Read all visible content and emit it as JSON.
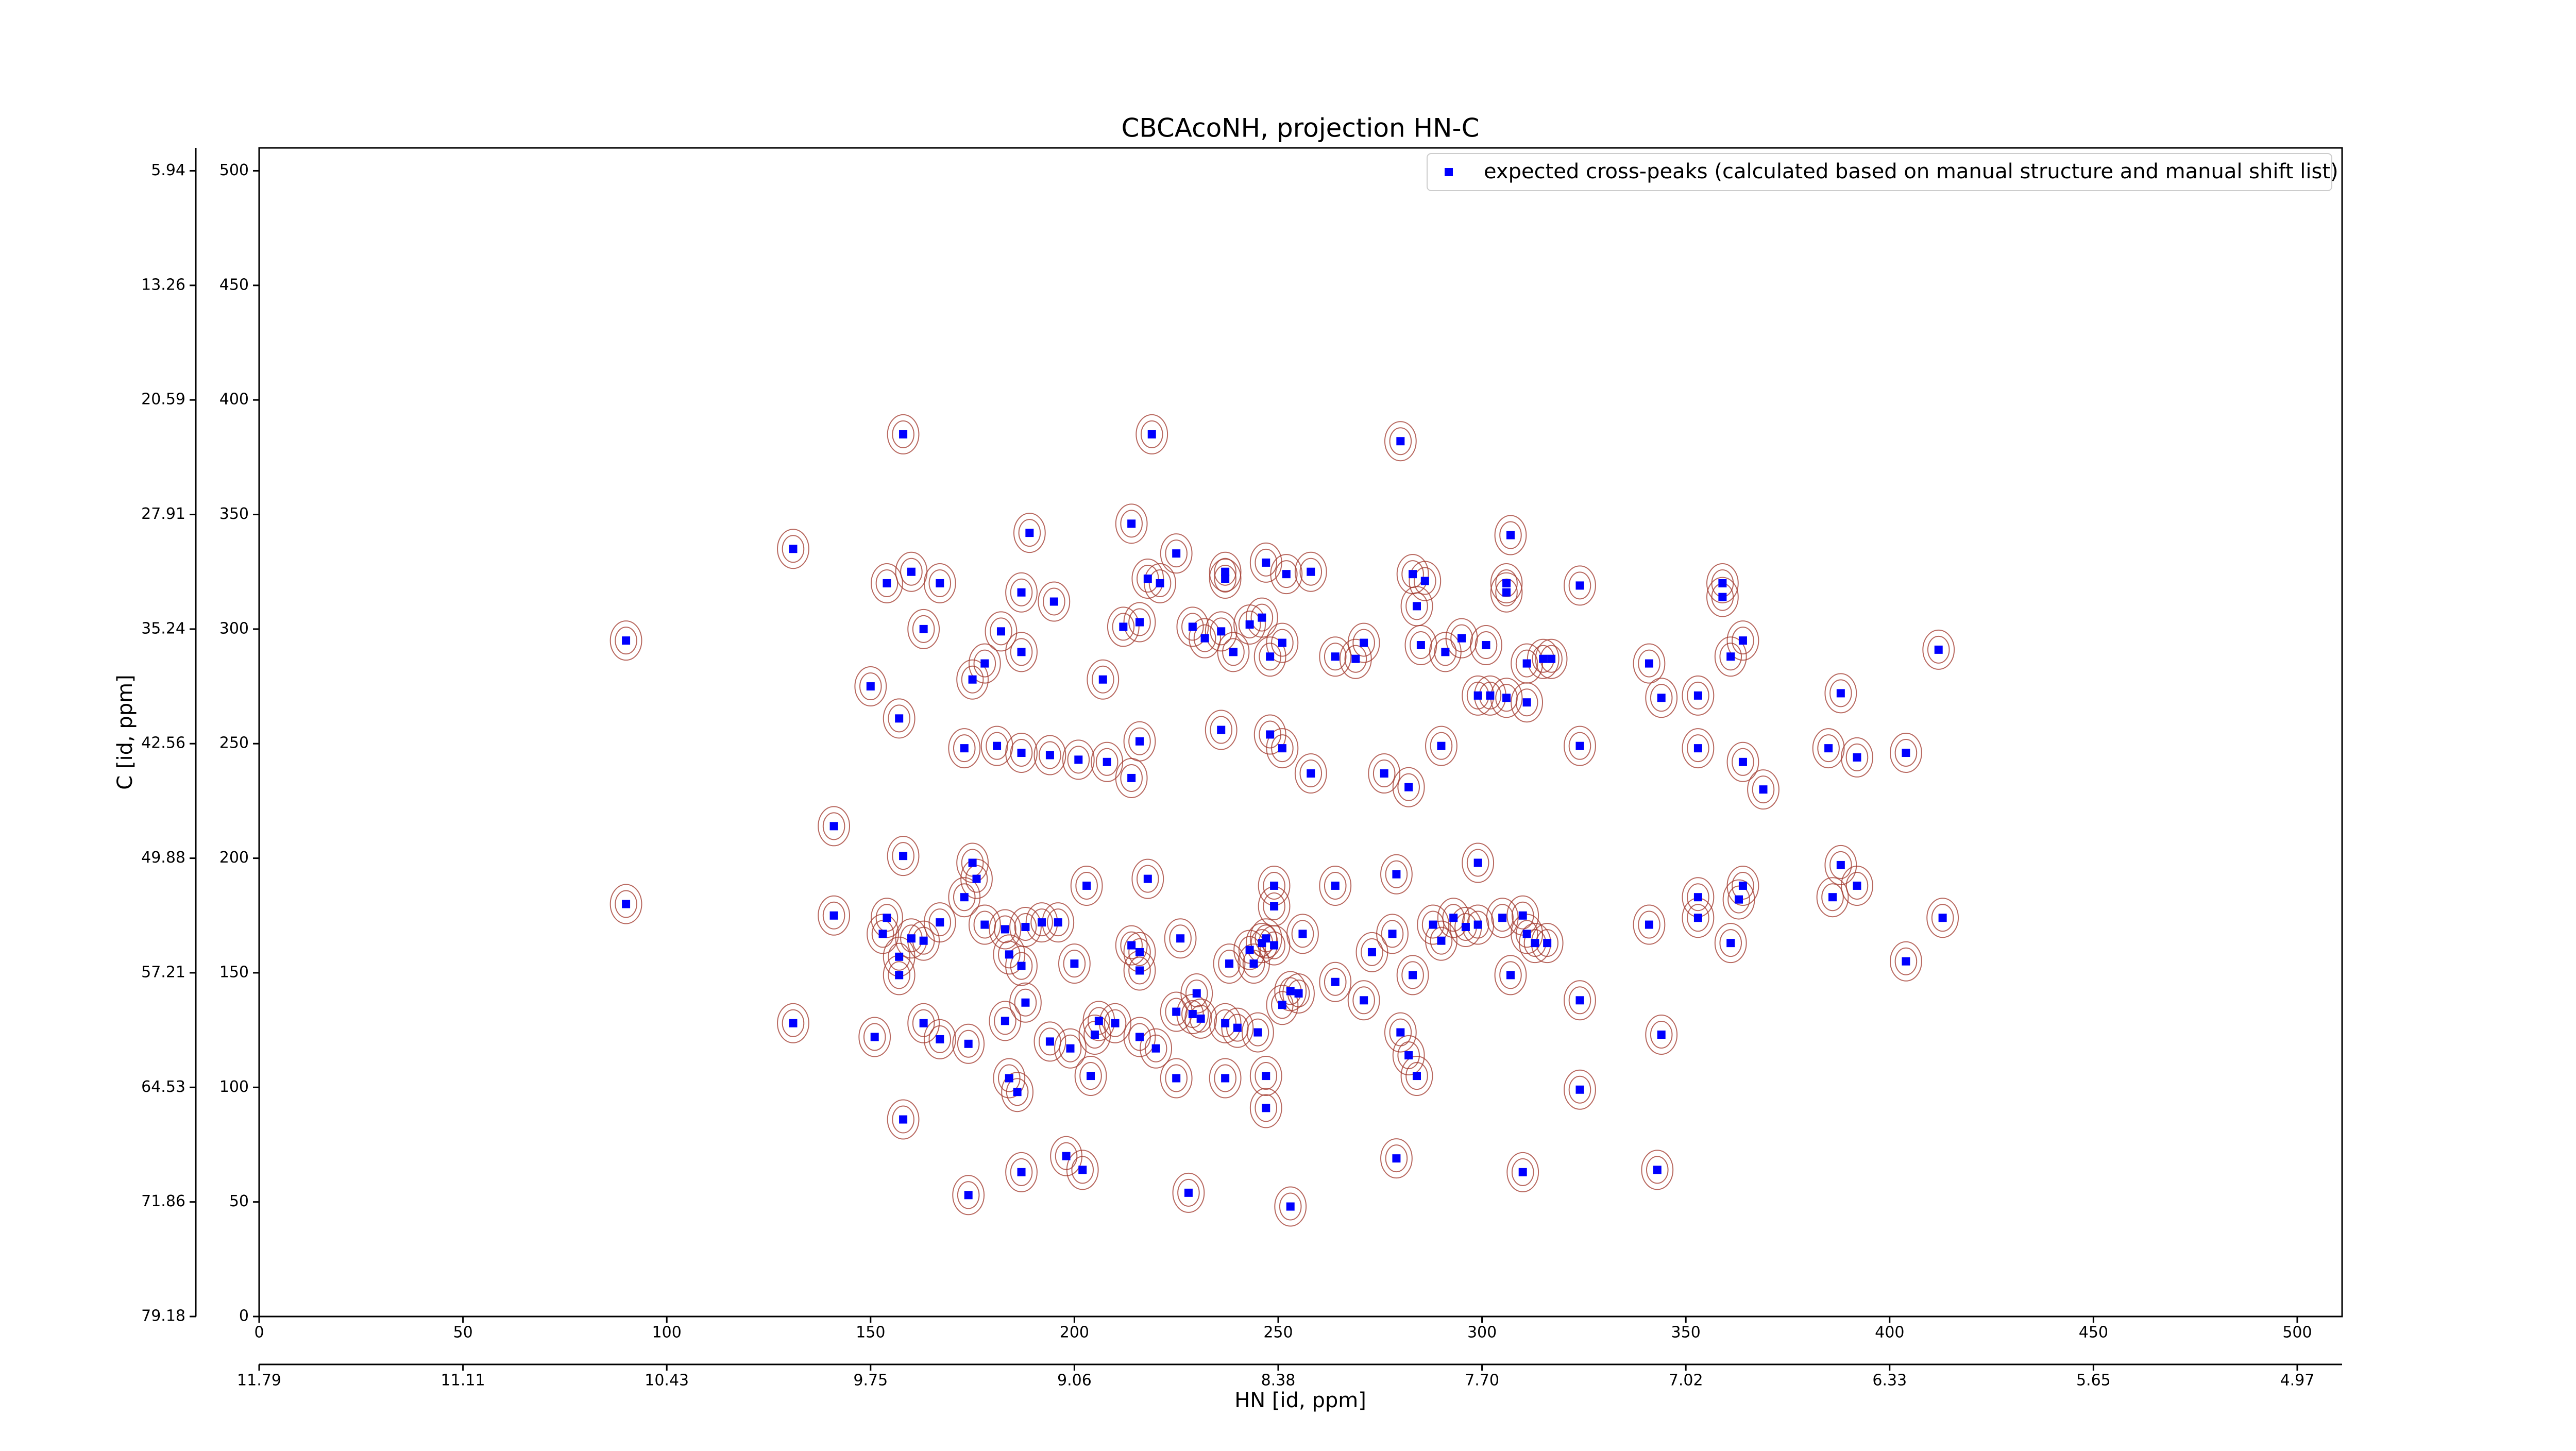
{
  "chart_data": {
    "type": "scatter",
    "title": "CBCAcoNH, projection HN-C",
    "xlabel": "HN [id, ppm]",
    "ylabel": "C [id, ppm]",
    "xlim": [
      0,
      511
    ],
    "ylim": [
      0,
      510
    ],
    "xticks": [
      0,
      50,
      100,
      150,
      200,
      250,
      300,
      350,
      400,
      450,
      500
    ],
    "yticks": [
      0,
      50,
      100,
      150,
      200,
      250,
      300,
      350,
      400,
      450,
      500
    ],
    "x2ticks": [
      {
        "value": 0,
        "label": "11.79"
      },
      {
        "value": 50,
        "label": "11.11"
      },
      {
        "value": 100,
        "label": "10.43"
      },
      {
        "value": 150,
        "label": "9.75"
      },
      {
        "value": 200,
        "label": "9.06"
      },
      {
        "value": 250,
        "label": "8.38"
      },
      {
        "value": 300,
        "label": "7.70"
      },
      {
        "value": 350,
        "label": "7.02"
      },
      {
        "value": 400,
        "label": "6.33"
      },
      {
        "value": 450,
        "label": "5.65"
      },
      {
        "value": 500,
        "label": "4.97"
      }
    ],
    "y2ticks": [
      {
        "value": 0,
        "label": "79.18"
      },
      {
        "value": 50,
        "label": "71.86"
      },
      {
        "value": 100,
        "label": "64.53"
      },
      {
        "value": 150,
        "label": "57.21"
      },
      {
        "value": 200,
        "label": "49.88"
      },
      {
        "value": 250,
        "label": "42.56"
      },
      {
        "value": 300,
        "label": "35.24"
      },
      {
        "value": 350,
        "label": "27.91"
      },
      {
        "value": 400,
        "label": "20.59"
      },
      {
        "value": 450,
        "label": "13.26"
      },
      {
        "value": 500,
        "label": "5.94"
      }
    ],
    "legend": "upper right",
    "series": [
      {
        "name": "expected cross-peaks (calculated based on manual structure and manual shift list)",
        "color": "#0000ff",
        "x": [
          158,
          219,
          280,
          131,
          189,
          214,
          225,
          307,
          154,
          160,
          167,
          187,
          195,
          218,
          221,
          237,
          237,
          247,
          252,
          258,
          283,
          286,
          284,
          306,
          306,
          324,
          359,
          359,
          90,
          163,
          182,
          187,
          212,
          216,
          229,
          236,
          243,
          246,
          251,
          248,
          239,
          232,
          271,
          264,
          269,
          285,
          291,
          295,
          301,
          311,
          315,
          317,
          364,
          361,
          341,
          412,
          150,
          175,
          178,
          207,
          299,
          302,
          306,
          311,
          344,
          353,
          388,
          157,
          173,
          181,
          187,
          194,
          201,
          208,
          214,
          216,
          236,
          248,
          251,
          258,
          276,
          282,
          290,
          324,
          353,
          364,
          369,
          385,
          392,
          404,
          141,
          158,
          175,
          176,
          203,
          218,
          249,
          249,
          264,
          279,
          299,
          388,
          90,
          141,
          154,
          153,
          160,
          163,
          167,
          173,
          178,
          183,
          188,
          192,
          196,
          184,
          187,
          200,
          214,
          216,
          216,
          226,
          238,
          243,
          246,
          249,
          247,
          244,
          256,
          264,
          273,
          278,
          288,
          290,
          293,
          296,
          299,
          305,
          310,
          311,
          316,
          313,
          341,
          353,
          353,
          364,
          363,
          386,
          392,
          413,
          361,
          157,
          157,
          283,
          307,
          404,
          151,
          163,
          167,
          174,
          183,
          188,
          194,
          199,
          205,
          206,
          210,
          216,
          220,
          230,
          229,
          231,
          237,
          240,
          245,
          251,
          253,
          255,
          271,
          280,
          282,
          284,
          131,
          225,
          225,
          237,
          247,
          247,
          204,
          184,
          186,
          324,
          344,
          324,
          158,
          198,
          202,
          187,
          279,
          174,
          228,
          253,
          310,
          343
        ],
        "values": [
          385,
          385,
          382,
          335,
          342,
          346,
          333,
          341,
          320,
          325,
          320,
          316,
          312,
          322,
          320,
          325,
          322,
          329,
          324,
          325,
          324,
          321,
          310,
          320,
          316,
          319,
          320,
          314,
          295,
          300,
          299,
          290,
          301,
          303,
          301,
          299,
          302,
          305,
          294,
          288,
          290,
          296,
          294,
          288,
          287,
          293,
          290,
          296,
          293,
          285,
          287,
          287,
          295,
          288,
          285,
          291,
          275,
          278,
          285,
          278,
          271,
          271,
          270,
          268,
          270,
          271,
          272,
          261,
          248,
          249,
          246,
          245,
          243,
          242,
          235,
          251,
          256,
          254,
          248,
          237,
          237,
          231,
          249,
          249,
          248,
          242,
          230,
          248,
          244,
          246,
          214,
          201,
          198,
          191,
          188,
          191,
          188,
          179,
          188,
          193,
          198,
          197,
          180,
          175,
          174,
          167,
          165,
          164,
          172,
          183,
          171,
          169,
          170,
          172,
          172,
          158,
          153,
          154,
          162,
          159,
          151,
          165,
          154,
          160,
          163,
          162,
          165,
          154,
          167,
          146,
          159,
          167,
          171,
          164,
          174,
          170,
          171,
          174,
          175,
          167,
          163,
          163,
          171,
          183,
          174,
          188,
          182,
          183,
          188,
          174,
          163,
          157,
          149,
          149,
          149,
          155,
          122,
          128,
          121,
          119,
          129,
          137,
          120,
          117,
          123,
          129,
          128,
          122,
          117,
          141,
          132,
          130,
          128,
          126,
          124,
          136,
          142,
          141,
          138,
          124,
          114,
          105,
          128,
          133,
          104,
          104,
          105,
          91,
          105,
          104,
          98,
          138,
          123,
          99,
          86,
          70,
          64,
          63,
          69,
          53,
          54,
          48,
          63,
          64
        ]
      }
    ]
  }
}
